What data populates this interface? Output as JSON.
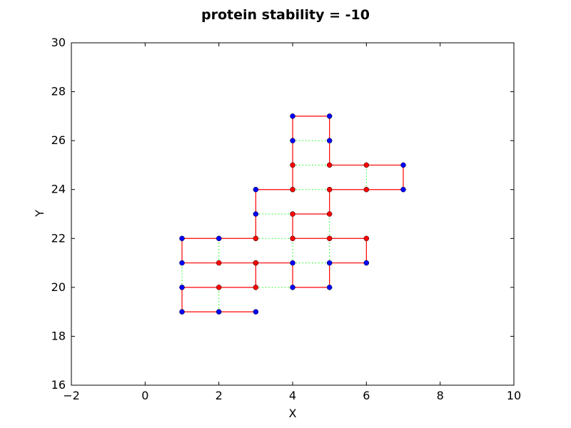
{
  "chart_data": {
    "type": "scatter",
    "title": "protein stability = -10",
    "xlabel": "X",
    "ylabel": "Y",
    "xlim": [
      -2,
      10
    ],
    "ylim": [
      16,
      30
    ],
    "xticks": [
      -2,
      0,
      2,
      4,
      6,
      8,
      10
    ],
    "yticks": [
      16,
      18,
      20,
      22,
      24,
      26,
      28,
      30
    ],
    "xtick_labels": [
      "−2",
      "0",
      "2",
      "4",
      "6",
      "8",
      "10"
    ],
    "ytick_labels": [
      "16",
      "18",
      "20",
      "22",
      "24",
      "26",
      "28",
      "30"
    ],
    "grid": false,
    "chain": [
      {
        "x": 3,
        "y": 19,
        "type": "H"
      },
      {
        "x": 2,
        "y": 19,
        "type": "H"
      },
      {
        "x": 1,
        "y": 19,
        "type": "H"
      },
      {
        "x": 1,
        "y": 20,
        "type": "H"
      },
      {
        "x": 2,
        "y": 20,
        "type": "P"
      },
      {
        "x": 3,
        "y": 20,
        "type": "P"
      },
      {
        "x": 3,
        "y": 21,
        "type": "P"
      },
      {
        "x": 2,
        "y": 21,
        "type": "P"
      },
      {
        "x": 1,
        "y": 21,
        "type": "H"
      },
      {
        "x": 1,
        "y": 22,
        "type": "H"
      },
      {
        "x": 2,
        "y": 22,
        "type": "H"
      },
      {
        "x": 3,
        "y": 22,
        "type": "P"
      },
      {
        "x": 3,
        "y": 23,
        "type": "H"
      },
      {
        "x": 3,
        "y": 24,
        "type": "H"
      },
      {
        "x": 4,
        "y": 24,
        "type": "P"
      },
      {
        "x": 4,
        "y": 25,
        "type": "P"
      },
      {
        "x": 4,
        "y": 26,
        "type": "H"
      },
      {
        "x": 4,
        "y": 27,
        "type": "H"
      },
      {
        "x": 5,
        "y": 27,
        "type": "H"
      },
      {
        "x": 5,
        "y": 26,
        "type": "H"
      },
      {
        "x": 5,
        "y": 25,
        "type": "P"
      },
      {
        "x": 6,
        "y": 25,
        "type": "P"
      },
      {
        "x": 7,
        "y": 25,
        "type": "H"
      },
      {
        "x": 7,
        "y": 24,
        "type": "H"
      },
      {
        "x": 6,
        "y": 24,
        "type": "P"
      },
      {
        "x": 5,
        "y": 24,
        "type": "P"
      },
      {
        "x": 5,
        "y": 23,
        "type": "P"
      },
      {
        "x": 4,
        "y": 23,
        "type": "P"
      },
      {
        "x": 4,
        "y": 22,
        "type": "P"
      },
      {
        "x": 5,
        "y": 22,
        "type": "P"
      },
      {
        "x": 6,
        "y": 22,
        "type": "P"
      },
      {
        "x": 6,
        "y": 21,
        "type": "H"
      },
      {
        "x": 5,
        "y": 21,
        "type": "H"
      },
      {
        "x": 5,
        "y": 20,
        "type": "H"
      },
      {
        "x": 4,
        "y": 20,
        "type": "H"
      },
      {
        "x": 4,
        "y": 21,
        "type": "H"
      },
      {
        "x": 3,
        "y": 21,
        "type": "P"
      }
    ],
    "contacts": [
      [
        [
          1,
          19
        ],
        [
          1,
          20
        ]
      ],
      [
        [
          2,
          19
        ],
        [
          2,
          20
        ]
      ],
      [
        [
          1,
          20
        ],
        [
          1,
          21
        ]
      ],
      [
        [
          2,
          21
        ],
        [
          2,
          22
        ]
      ],
      [
        [
          1,
          21
        ],
        [
          1,
          22
        ]
      ],
      [
        [
          3,
          20
        ],
        [
          4,
          20
        ]
      ],
      [
        [
          3,
          22
        ],
        [
          4,
          22
        ]
      ],
      [
        [
          3,
          23
        ],
        [
          4,
          23
        ]
      ],
      [
        [
          3,
          22
        ],
        [
          3,
          23
        ]
      ],
      [
        [
          4,
          21
        ],
        [
          5,
          21
        ]
      ],
      [
        [
          4,
          21
        ],
        [
          4,
          22
        ]
      ],
      [
        [
          4,
          24
        ],
        [
          5,
          24
        ]
      ],
      [
        [
          4,
          25
        ],
        [
          5,
          25
        ]
      ],
      [
        [
          4,
          26
        ],
        [
          5,
          26
        ]
      ],
      [
        [
          5,
          22
        ],
        [
          5,
          23
        ]
      ],
      [
        [
          6,
          24
        ],
        [
          6,
          25
        ]
      ],
      [
        [
          5,
          21
        ],
        [
          5,
          22
        ]
      ]
    ],
    "colors": {
      "H": "#0000ff",
      "P": "#ff0000",
      "chain_line": "#ff0000",
      "contact_line": "#00ff00",
      "axes": "#000000"
    }
  }
}
